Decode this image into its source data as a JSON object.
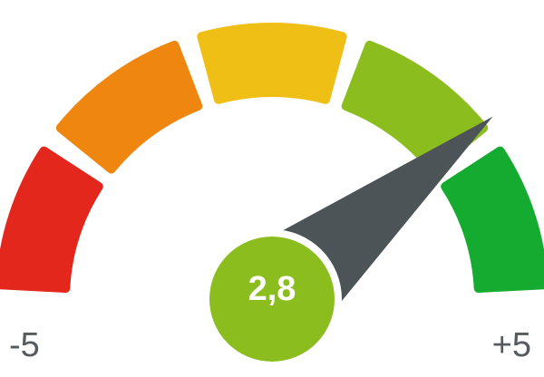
{
  "gauge": {
    "value": 2.8,
    "value_label": "2,8",
    "min": -5,
    "max": 5,
    "min_label": "-5",
    "max_label": "+5",
    "segments": [
      {
        "name": "segment-red",
        "color": "#e3271c"
      },
      {
        "name": "segment-orange",
        "color": "#ef860f"
      },
      {
        "name": "segment-yellow",
        "color": "#f0bf15"
      },
      {
        "name": "segment-lightgreen",
        "color": "#8bbd1f"
      },
      {
        "name": "segment-green",
        "color": "#14ab30"
      }
    ],
    "needle_color": "#4c5457",
    "hub_color": "#8bbd1f",
    "value_text_color": "#ffffff"
  }
}
